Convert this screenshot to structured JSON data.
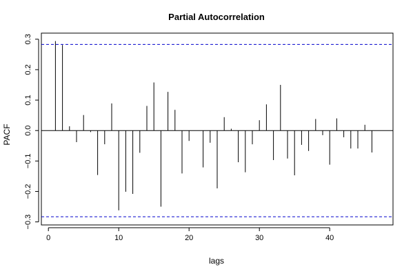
{
  "chart_data": {
    "type": "bar",
    "title": "Partial Autocorrelation",
    "xlabel": "lags",
    "ylabel": "PACF",
    "xlim": [
      -1,
      49
    ],
    "ylim": [
      -0.31,
      0.32
    ],
    "x_ticks": [
      0,
      10,
      20,
      30,
      40
    ],
    "y_ticks": [
      -0.3,
      -0.2,
      -0.1,
      0.0,
      0.1,
      0.2,
      0.3
    ],
    "y_tick_labels": [
      "−0.3",
      "−0.2",
      "−0.1",
      "0.0",
      "0.1",
      "0.2",
      "0.3"
    ],
    "confidence_bounds": [
      0.283,
      -0.283
    ],
    "bound_color": "#0000cc",
    "x": [
      1,
      2,
      3,
      4,
      5,
      6,
      7,
      8,
      9,
      10,
      11,
      12,
      13,
      14,
      15,
      16,
      17,
      18,
      19,
      20,
      21,
      22,
      23,
      24,
      25,
      26,
      27,
      28,
      29,
      30,
      31,
      32,
      33,
      34,
      35,
      36,
      37,
      38,
      39,
      40,
      41,
      42,
      43,
      44,
      45,
      46
    ],
    "values": [
      0.294,
      0.281,
      0.014,
      -0.038,
      0.051,
      -0.005,
      -0.146,
      -0.045,
      0.089,
      -0.262,
      -0.201,
      -0.208,
      -0.073,
      0.081,
      0.158,
      -0.25,
      0.127,
      0.068,
      -0.141,
      -0.034,
      0.0,
      -0.121,
      -0.04,
      -0.19,
      0.044,
      0.006,
      -0.104,
      -0.137,
      -0.045,
      0.034,
      0.086,
      -0.097,
      0.15,
      -0.092,
      -0.147,
      -0.047,
      -0.067,
      0.038,
      -0.015,
      -0.112,
      0.04,
      -0.022,
      -0.059,
      -0.059,
      0.019,
      -0.072
    ]
  }
}
